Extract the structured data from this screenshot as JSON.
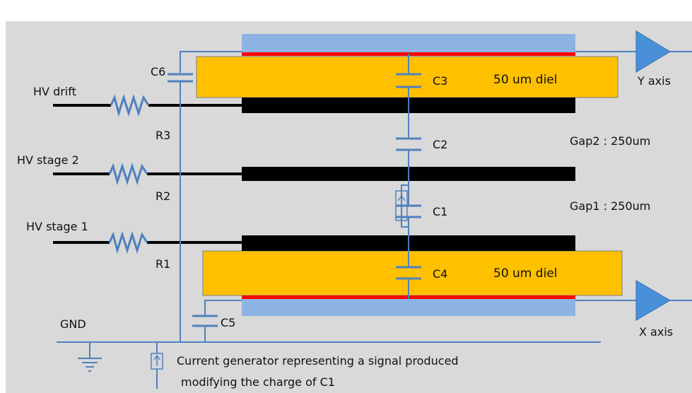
{
  "labels": {
    "hv_drift": "HV drift",
    "hv_stage2": "HV stage 2",
    "hv_stage1": "HV stage 1",
    "gnd": "GND",
    "r1": "R1",
    "r2": "R2",
    "r3": "R3",
    "c1": "C1",
    "c2": "C2",
    "c3": "C3",
    "c4": "C4",
    "c5": "C5",
    "c6": "C6",
    "diel_top": "50 um diel",
    "diel_bottom": "50 um diel",
    "gap2": "Gap2 : 250um",
    "gap1": "Gap1 : 250um",
    "y_axis": "Y axis",
    "x_axis": "X axis",
    "note_line1": "Current generator representing a signal produced",
    "note_line2": "modifying the charge of C1"
  },
  "colors": {
    "background": "#d9d9d9",
    "wire": "#4f81bd",
    "electrode": "#000000",
    "dielectric": "#ffc000",
    "readout_strip": "#8db3e2",
    "strip_edge": "#ff0000",
    "amplifier": "#4a90d9"
  }
}
